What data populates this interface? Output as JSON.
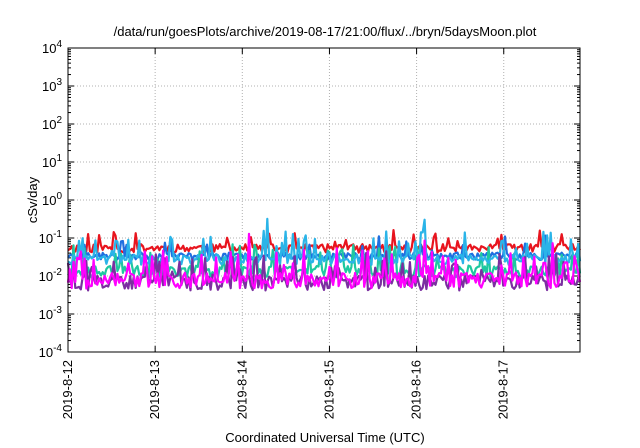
{
  "chart_data": {
    "type": "line",
    "title": "/data/run/goesPlots/archive/2019-08-17/21:00/flux/../bryn/5daysMoon.plot",
    "xlabel": "Coordinated Universal Time (UTC)",
    "ylabel": "cSv/day",
    "yscale": "log",
    "ylim": [
      0.0001,
      10000
    ],
    "yticks": [
      {
        "value": 0.0001,
        "base": "10",
        "exp": "-4"
      },
      {
        "value": 0.001,
        "base": "10",
        "exp": "-3"
      },
      {
        "value": 0.01,
        "base": "10",
        "exp": "-2"
      },
      {
        "value": 0.1,
        "base": "10",
        "exp": "-1"
      },
      {
        "value": 1,
        "base": "10",
        "exp": "0"
      },
      {
        "value": 10,
        "base": "10",
        "exp": "1"
      },
      {
        "value": 100,
        "base": "10",
        "exp": "2"
      },
      {
        "value": 1000,
        "base": "10",
        "exp": "3"
      },
      {
        "value": 10000,
        "base": "10",
        "exp": "4"
      }
    ],
    "xlim": [
      "2019-08-12 00:00",
      "2019-08-17 21:00"
    ],
    "xticks": [
      "2019-8-12",
      "2019-8-13",
      "2019-8-14",
      "2019-8-15",
      "2019-8-16",
      "2019-8-17"
    ],
    "grid": true,
    "series": [
      {
        "color": "#e8141e",
        "base": 0.055,
        "spread": 0.25,
        "spike": 0.06,
        "seed": 11
      },
      {
        "color": "#1f6fe0",
        "base": 0.034,
        "spread": 0.22,
        "spike": 0.05,
        "seed": 23
      },
      {
        "color": "#1ec8a0",
        "base": 0.014,
        "spread": 0.35,
        "spike": 0.04,
        "seed": 37
      },
      {
        "color": "#2ab4e8",
        "base": 0.028,
        "spread": 0.3,
        "spike": 0.05,
        "seed": 41
      },
      {
        "color": "#7b2fa0",
        "base": 0.0075,
        "spread": 0.45,
        "spike": 0.05,
        "seed": 53
      },
      {
        "color": "#ff00ff",
        "base": 0.0085,
        "spread": 0.45,
        "spike": 0.05,
        "seed": 67
      }
    ]
  }
}
